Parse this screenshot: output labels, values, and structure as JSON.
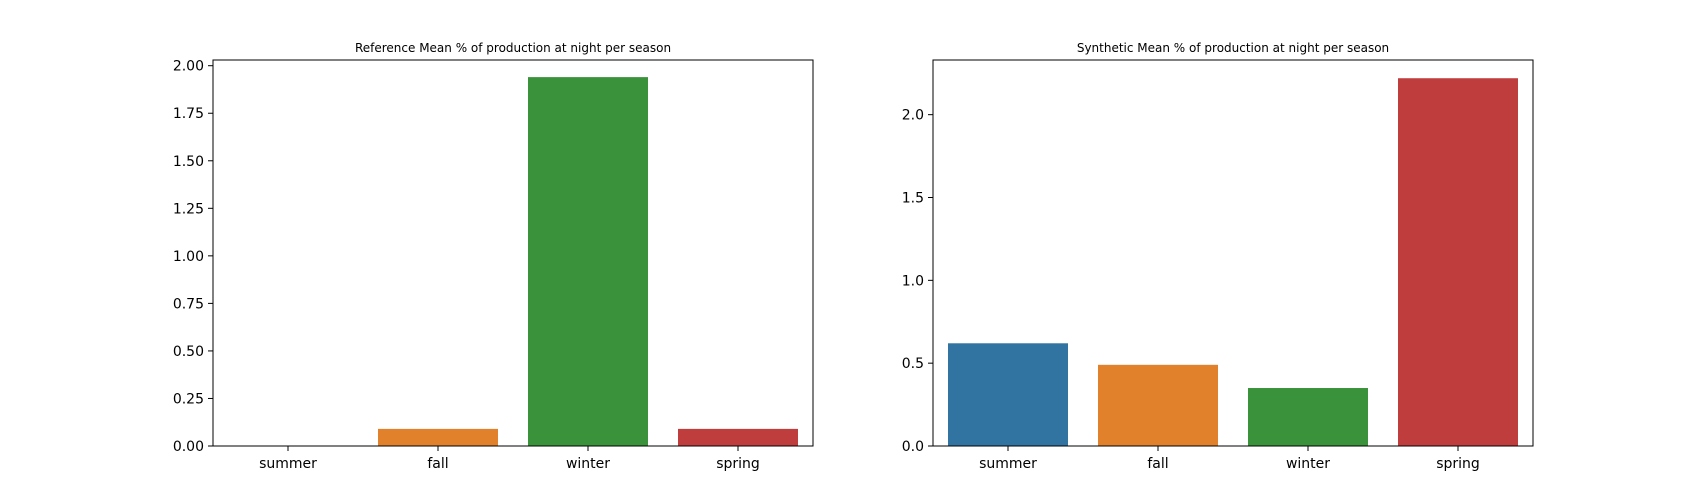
{
  "chart_data": [
    {
      "type": "bar",
      "title": "Reference Mean % of production at night per season",
      "categories": [
        "summer",
        "fall",
        "winter",
        "spring"
      ],
      "values": [
        0.0,
        0.09,
        1.94,
        0.09
      ],
      "colors": [
        "#3274a1",
        "#e1812c",
        "#3a923a",
        "#c03d3e"
      ],
      "xlabel": "",
      "ylabel": "",
      "ylim": [
        0,
        2.03
      ],
      "yticks": [
        0.0,
        0.25,
        0.5,
        0.75,
        1.0,
        1.25,
        1.5,
        1.75,
        2.0
      ],
      "ytick_labels": [
        "0.00",
        "0.25",
        "0.50",
        "0.75",
        "1.00",
        "1.25",
        "1.50",
        "1.75",
        "2.00"
      ],
      "grid": false
    },
    {
      "type": "bar",
      "title": "Synthetic Mean % of production at night per season",
      "categories": [
        "summer",
        "fall",
        "winter",
        "spring"
      ],
      "values": [
        0.62,
        0.49,
        0.35,
        2.22
      ],
      "colors": [
        "#3274a1",
        "#e1812c",
        "#3a923a",
        "#c03d3e"
      ],
      "xlabel": "",
      "ylabel": "",
      "ylim": [
        0,
        2.33
      ],
      "yticks": [
        0.0,
        0.5,
        1.0,
        1.5,
        2.0
      ],
      "ytick_labels": [
        "0.0",
        "0.5",
        "1.0",
        "1.5",
        "2.0"
      ],
      "grid": false
    }
  ]
}
